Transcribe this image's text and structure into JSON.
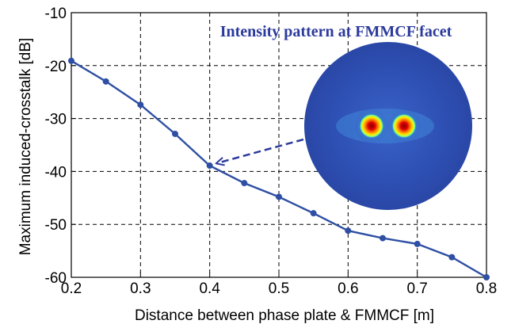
{
  "chart_data": {
    "type": "line",
    "title": "",
    "xlabel": "Distance between phase plate & FMMCF [m]",
    "ylabel": "Maximum induced-crosstalk [dB]",
    "xlim": [
      0.2,
      0.8
    ],
    "ylim": [
      -60,
      -10
    ],
    "xticks": [
      0.2,
      0.3,
      0.4,
      0.5,
      0.6,
      0.7,
      0.8
    ],
    "xtick_labels": [
      "0.2",
      "0.3",
      "0.4",
      "0.5",
      "0.6",
      "0.7",
      "0.8"
    ],
    "yticks": [
      -10,
      -20,
      -30,
      -40,
      -50,
      -60
    ],
    "ytick_labels": [
      "-10",
      "-20",
      "-30",
      "-40",
      "-50",
      "-60"
    ],
    "grid": true,
    "grid_style": "dashed",
    "legend": "none",
    "series": [
      {
        "color": "#2e4fa3",
        "marker": "circle",
        "x": [
          0.2,
          0.25,
          0.3,
          0.35,
          0.4,
          0.45,
          0.5,
          0.55,
          0.6,
          0.65,
          0.7,
          0.75,
          0.8
        ],
        "y": [
          -19.1,
          -23.0,
          -27.4,
          -32.9,
          -38.9,
          -42.2,
          -44.8,
          -47.9,
          -51.2,
          -52.6,
          -53.7,
          -56.2,
          -60.0
        ]
      }
    ],
    "annotation": {
      "text": "Intensity pattern at FMMCF facet",
      "color": "#2b3a9c",
      "arrow_target": {
        "x": 0.4,
        "y": -38.9
      },
      "arrow_style": "dashed",
      "inset": "circular intensity image: two red/yellow lobes on a dark blue disk"
    }
  }
}
